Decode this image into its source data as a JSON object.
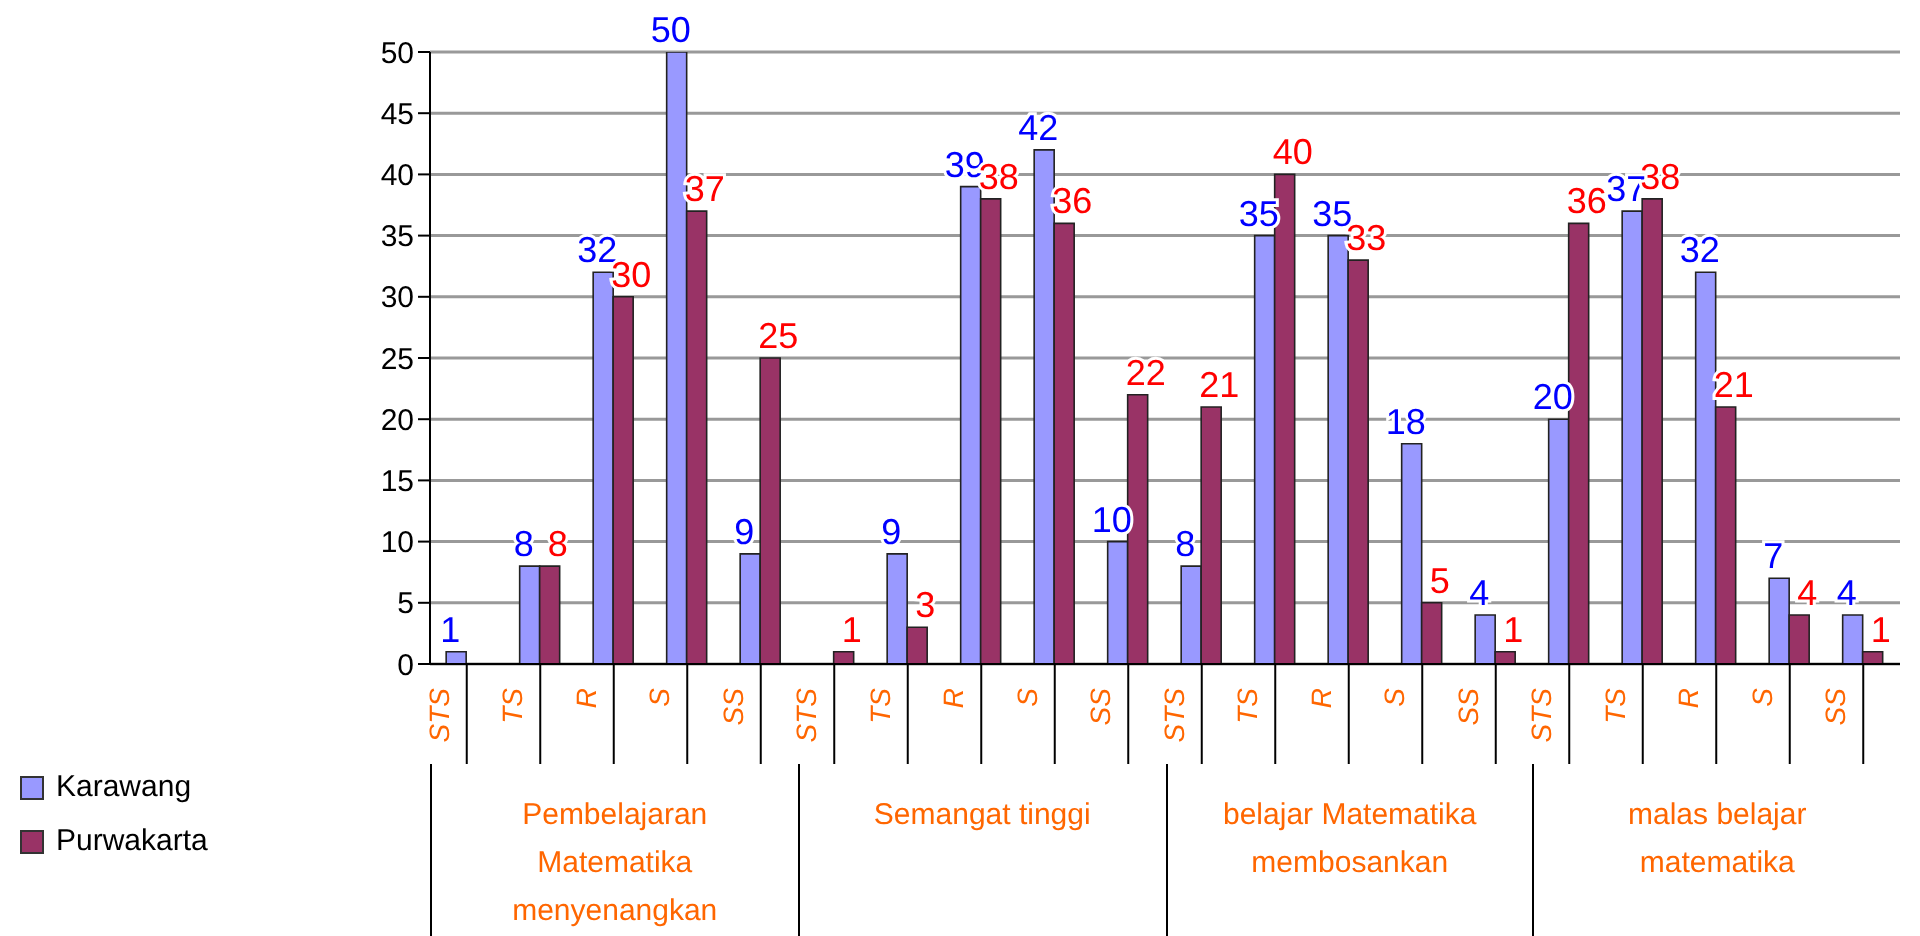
{
  "chart_data": {
    "type": "bar",
    "categories": [
      "STS",
      "TS",
      "R",
      "S",
      "SS",
      "STS",
      "TS",
      "R",
      "S",
      "SS",
      "STS",
      "TS",
      "R",
      "S",
      "SS",
      "STS",
      "TS",
      "R",
      "S",
      "SS"
    ],
    "series": [
      {
        "name": "Karawang",
        "color": "#9999ff",
        "values": [
          1,
          8,
          32,
          50,
          9,
          0,
          9,
          39,
          42,
          10,
          8,
          35,
          35,
          18,
          4,
          20,
          37,
          32,
          7,
          4
        ],
        "value_labels": [
          "1",
          "8",
          "32",
          "50",
          "9",
          null,
          "9",
          "39",
          "42",
          "10",
          "8",
          "35",
          "35",
          "18",
          "4",
          "20",
          "37",
          "32",
          "7",
          "4"
        ]
      },
      {
        "name": "Purwakarta",
        "color": "#993366",
        "values": [
          0,
          8,
          30,
          37,
          25,
          1,
          3,
          38,
          36,
          22,
          21,
          40,
          33,
          5,
          1,
          36,
          38,
          21,
          4,
          1
        ],
        "value_labels": [
          null,
          "8",
          "30",
          "37",
          "25",
          "1",
          "3",
          "38",
          "36",
          "22",
          "21",
          "40",
          "33",
          "5",
          "1",
          "36",
          "38",
          "21",
          "4",
          "1"
        ]
      }
    ],
    "annotations": [
      "Pembelajaran Matematika menyenangkan",
      "Semangat tinggi",
      "belajar Matematika membosankan",
      "malas belajar matematika"
    ],
    "ylim": [
      0,
      50
    ],
    "yticks": [
      0,
      5,
      10,
      15,
      20,
      25,
      30,
      35,
      40,
      45,
      50
    ],
    "grid": "y",
    "legend": "left"
  }
}
